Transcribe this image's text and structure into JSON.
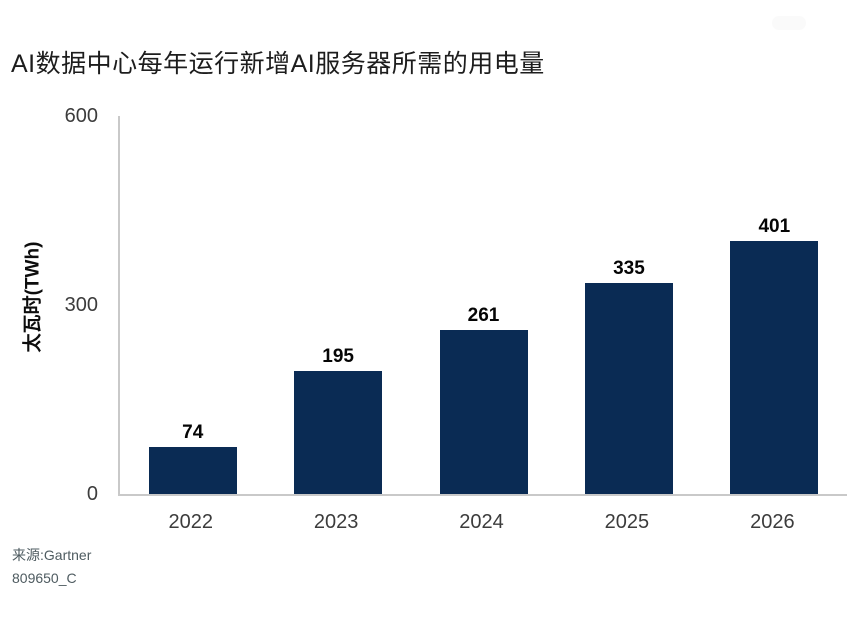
{
  "page": {
    "title": "AI数据中心每年运行新增AI服务器所需的用电量",
    "source_line": "来源:Gartner",
    "doc_code": "809650_C"
  },
  "colors": {
    "bar": "#0a2b54",
    "axis_line": "#c9c9c9",
    "title_text": "#1d1d1d",
    "tick_text": "#3c3c3c",
    "value_text": "#050505",
    "source_text": "#4e5b60"
  },
  "chart_data": {
    "type": "bar",
    "title": "AI数据中心每年运行新增AI服务器所需的用电量",
    "categories": [
      "2022",
      "2023",
      "2024",
      "2025",
      "2026"
    ],
    "values": [
      74,
      195,
      261,
      335,
      401
    ],
    "value_labels": [
      "74",
      "195",
      "261",
      "335",
      "401"
    ],
    "xlabel": "",
    "ylabel": "太瓦时(TWh)",
    "ylim": [
      0,
      600
    ],
    "yticks": [
      0,
      300,
      600
    ],
    "bar_color": "#0a2b54",
    "grid": false,
    "legend_position": "none",
    "source": "来源:Gartner",
    "footnote": "809650_C"
  }
}
